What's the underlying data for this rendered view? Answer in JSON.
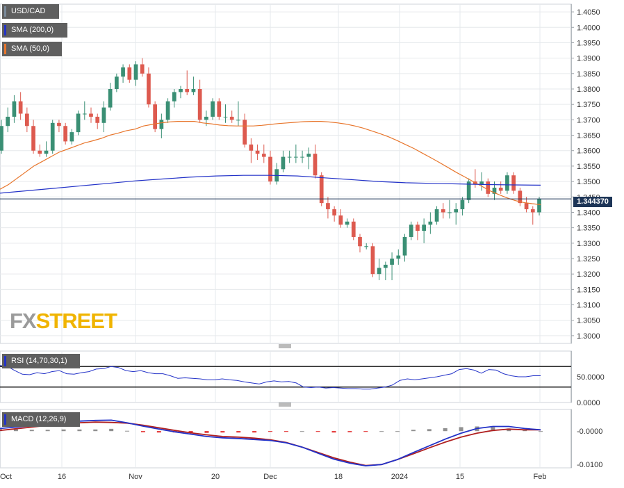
{
  "symbol": "USD/CAD",
  "indicators": {
    "sma200": {
      "label": "SMA (200,0)",
      "color": "#2332c8"
    },
    "sma50": {
      "label": "SMA (50,0)",
      "color": "#e8762c"
    },
    "rsi": {
      "label": "RSI (14,70,30,1)",
      "color": "#2332c8"
    },
    "macd": {
      "label": "MACD (12,26,9)"
    }
  },
  "colors": {
    "up": "#3a8f74",
    "down": "#dd5a4f",
    "macd_line": "#2332c8",
    "signal_line": "#b02020",
    "hist_pos": "#909090",
    "hist_neg": "#e02020"
  },
  "current_price": "1.344370",
  "watermark": {
    "part1": "FX",
    "part2": "STREET"
  },
  "chart_data": [
    {
      "type": "candlestick",
      "title": "USD/CAD",
      "x_labels": [
        "Oct",
        "16",
        "Nov",
        "20",
        "Dec",
        "18",
        "2024",
        "15",
        "Feb"
      ],
      "y_ticks": [
        "1.4050",
        "1.4000",
        "1.3950",
        "1.3900",
        "1.3850",
        "1.3800",
        "1.3750",
        "1.3700",
        "1.3650",
        "1.3600",
        "1.3550",
        "1.3500",
        "1.3450",
        "1.3400",
        "1.3350",
        "1.3300",
        "1.3250",
        "1.3200",
        "1.3150",
        "1.3100",
        "1.3050",
        "1.3000"
      ],
      "ylim": [
        1.2975,
        1.4075
      ],
      "last_price": 1.34437,
      "ohlc": [
        [
          1.36,
          1.37,
          1.359,
          1.368
        ],
        [
          1.368,
          1.374,
          1.366,
          1.371
        ],
        [
          1.371,
          1.378,
          1.369,
          1.376
        ],
        [
          1.376,
          1.379,
          1.37,
          1.372
        ],
        [
          1.372,
          1.374,
          1.366,
          1.368
        ],
        [
          1.368,
          1.37,
          1.359,
          1.36
        ],
        [
          1.36,
          1.362,
          1.358,
          1.359
        ],
        [
          1.359,
          1.363,
          1.358,
          1.36
        ],
        [
          1.36,
          1.37,
          1.359,
          1.369
        ],
        [
          1.369,
          1.37,
          1.366,
          1.368
        ],
        [
          1.368,
          1.369,
          1.362,
          1.363
        ],
        [
          1.363,
          1.367,
          1.362,
          1.366
        ],
        [
          1.366,
          1.373,
          1.365,
          1.372
        ],
        [
          1.372,
          1.376,
          1.37,
          1.372
        ],
        [
          1.372,
          1.374,
          1.369,
          1.371
        ],
        [
          1.371,
          1.372,
          1.367,
          1.369
        ],
        [
          1.369,
          1.376,
          1.366,
          1.374
        ],
        [
          1.374,
          1.382,
          1.373,
          1.38
        ],
        [
          1.38,
          1.385,
          1.379,
          1.384
        ],
        [
          1.384,
          1.388,
          1.382,
          1.387
        ],
        [
          1.387,
          1.388,
          1.382,
          1.383
        ],
        [
          1.383,
          1.389,
          1.381,
          1.388
        ],
        [
          1.388,
          1.39,
          1.384,
          1.385
        ],
        [
          1.385,
          1.387,
          1.374,
          1.375
        ],
        [
          1.375,
          1.376,
          1.366,
          1.367
        ],
        [
          1.367,
          1.372,
          1.364,
          1.37
        ],
        [
          1.37,
          1.377,
          1.369,
          1.376
        ],
        [
          1.376,
          1.38,
          1.374,
          1.379
        ],
        [
          1.379,
          1.381,
          1.377,
          1.38
        ],
        [
          1.38,
          1.386,
          1.378,
          1.379
        ],
        [
          1.379,
          1.384,
          1.378,
          1.38
        ],
        [
          1.38,
          1.383,
          1.369,
          1.37
        ],
        [
          1.37,
          1.373,
          1.368,
          1.371
        ],
        [
          1.371,
          1.377,
          1.37,
          1.376
        ],
        [
          1.376,
          1.377,
          1.37,
          1.371
        ],
        [
          1.371,
          1.375,
          1.369,
          1.371
        ],
        [
          1.371,
          1.373,
          1.369,
          1.37
        ],
        [
          1.37,
          1.376,
          1.368,
          1.37
        ],
        [
          1.37,
          1.372,
          1.361,
          1.362
        ],
        [
          1.362,
          1.364,
          1.356,
          1.36
        ],
        [
          1.36,
          1.362,
          1.357,
          1.359
        ],
        [
          1.359,
          1.362,
          1.356,
          1.358
        ],
        [
          1.358,
          1.36,
          1.349,
          1.35
        ],
        [
          1.35,
          1.356,
          1.349,
          1.354
        ],
        [
          1.354,
          1.36,
          1.353,
          1.358
        ],
        [
          1.358,
          1.36,
          1.356,
          1.358
        ],
        [
          1.358,
          1.362,
          1.356,
          1.358
        ],
        [
          1.358,
          1.36,
          1.356,
          1.358
        ],
        [
          1.358,
          1.361,
          1.354,
          1.359
        ],
        [
          1.359,
          1.362,
          1.351,
          1.352
        ],
        [
          1.352,
          1.353,
          1.342,
          1.343
        ],
        [
          1.343,
          1.345,
          1.338,
          1.341
        ],
        [
          1.341,
          1.342,
          1.337,
          1.339
        ],
        [
          1.339,
          1.341,
          1.335,
          1.336
        ],
        [
          1.336,
          1.338,
          1.335,
          1.337
        ],
        [
          1.337,
          1.338,
          1.331,
          1.332
        ],
        [
          1.332,
          1.333,
          1.327,
          1.329
        ],
        [
          1.329,
          1.33,
          1.328,
          1.329
        ],
        [
          1.329,
          1.33,
          1.319,
          1.32
        ],
        [
          1.32,
          1.325,
          1.318,
          1.322
        ],
        [
          1.322,
          1.324,
          1.318,
          1.323
        ],
        [
          1.323,
          1.327,
          1.318,
          1.325
        ],
        [
          1.325,
          1.328,
          1.323,
          1.326
        ],
        [
          1.326,
          1.333,
          1.324,
          1.332
        ],
        [
          1.332,
          1.337,
          1.331,
          1.336
        ],
        [
          1.336,
          1.337,
          1.331,
          1.334
        ],
        [
          1.334,
          1.338,
          1.33,
          1.336
        ],
        [
          1.336,
          1.34,
          1.333,
          1.337
        ],
        [
          1.337,
          1.342,
          1.336,
          1.341
        ],
        [
          1.341,
          1.343,
          1.338,
          1.34
        ],
        [
          1.34,
          1.344,
          1.338,
          1.34
        ],
        [
          1.34,
          1.343,
          1.336,
          1.341
        ],
        [
          1.341,
          1.345,
          1.339,
          1.344
        ],
        [
          1.344,
          1.351,
          1.343,
          1.35
        ],
        [
          1.35,
          1.354,
          1.348,
          1.349
        ],
        [
          1.349,
          1.353,
          1.347,
          1.35
        ],
        [
          1.35,
          1.351,
          1.345,
          1.346
        ],
        [
          1.346,
          1.35,
          1.344,
          1.348
        ],
        [
          1.348,
          1.35,
          1.346,
          1.347
        ],
        [
          1.347,
          1.353,
          1.346,
          1.352
        ],
        [
          1.352,
          1.353,
          1.346,
          1.347
        ],
        [
          1.347,
          1.348,
          1.342,
          1.343
        ],
        [
          1.343,
          1.345,
          1.34,
          1.341
        ],
        [
          1.341,
          1.342,
          1.336,
          1.34
        ],
        [
          1.34,
          1.345,
          1.339,
          1.3444
        ]
      ],
      "sma50": [
        1.3475,
        1.349,
        1.351,
        1.353,
        1.355,
        1.3565,
        1.358,
        1.3595,
        1.3605,
        1.3615,
        1.3625,
        1.3632,
        1.364,
        1.365,
        1.3657,
        1.3665,
        1.367,
        1.368,
        1.3685,
        1.369,
        1.3693,
        1.3695,
        1.3695,
        1.3695,
        1.369,
        1.3687,
        1.3683,
        1.3681,
        1.368,
        1.368,
        1.368,
        1.3682,
        1.3685,
        1.3688,
        1.369,
        1.3692,
        1.3694,
        1.3695,
        1.3695,
        1.3693,
        1.369,
        1.3686,
        1.368,
        1.3673,
        1.3664,
        1.3655,
        1.3645,
        1.3633,
        1.362,
        1.3607,
        1.3592,
        1.3577,
        1.3562,
        1.3546,
        1.353,
        1.3515,
        1.35,
        1.3485,
        1.347,
        1.3458,
        1.3447,
        1.3438,
        1.3432,
        1.3428,
        1.3425
      ],
      "sma200": [
        1.3462,
        1.347,
        1.3478,
        1.3486,
        1.3494,
        1.3502,
        1.3508,
        1.3514,
        1.3518,
        1.352,
        1.352,
        1.3518,
        1.3512,
        1.3506,
        1.35,
        1.3496,
        1.3494,
        1.3492,
        1.349,
        1.3489,
        1.3488
      ],
      "pane": "price"
    },
    {
      "type": "line",
      "title": "RSI (14,70,30,1)",
      "y_ticks": [
        "50.0000",
        "0.0000"
      ],
      "ylim": [
        0,
        100
      ],
      "levels": [
        70,
        30
      ],
      "values": [
        72,
        70,
        62,
        55,
        54,
        58,
        56,
        60,
        62,
        56,
        55,
        58,
        60,
        65,
        66,
        70,
        68,
        62,
        60,
        62,
        58,
        56,
        56,
        52,
        47,
        48,
        47,
        46,
        44,
        44,
        46,
        44,
        43,
        40,
        38,
        36,
        40,
        42,
        40,
        41,
        38,
        30,
        29,
        30,
        28,
        29,
        28,
        27,
        27,
        26,
        26,
        28,
        30,
        34,
        43,
        46,
        44,
        46,
        48,
        50,
        53,
        56,
        64,
        66,
        63,
        57,
        64,
        63,
        56,
        52,
        50,
        50,
        52,
        52
      ]
    },
    {
      "type": "line",
      "title": "MACD (12,26,9)",
      "y_ticks": [
        "-0.0000",
        "-0.0100"
      ],
      "ylim": [
        -0.011,
        0.0065
      ],
      "macd": [
        0.0008,
        0.0012,
        0.0016,
        0.0021,
        0.0026,
        0.003,
        0.0032,
        0.0033,
        0.0025,
        0.0015,
        0.0006,
        -0.0002,
        -0.0009,
        -0.0016,
        -0.002,
        -0.0022,
        -0.0025,
        -0.0028,
        -0.0035,
        -0.0048,
        -0.0066,
        -0.0084,
        -0.0096,
        -0.0104,
        -0.01,
        -0.0085,
        -0.0064,
        -0.0044,
        -0.0024,
        -0.0006,
        0.0008,
        0.0014,
        0.0014,
        0.0008,
        0.0004
      ],
      "signal": [
        0.0002,
        0.0007,
        0.0012,
        0.0017,
        0.0021,
        0.0025,
        0.0027,
        0.0026,
        0.0024,
        0.0018,
        0.001,
        0.0002,
        -0.0005,
        -0.0011,
        -0.0016,
        -0.0018,
        -0.0021,
        -0.0026,
        -0.0034,
        -0.0048,
        -0.0064,
        -0.008,
        -0.0093,
        -0.0103,
        -0.01,
        -0.0085,
        -0.0068,
        -0.005,
        -0.0033,
        -0.0018,
        -0.0006,
        0.0002,
        0.0006,
        0.0004,
        0.0004
      ],
      "histogram": [
        0.0006,
        0.0006,
        0.0004,
        0.0004,
        0.0005,
        0.0005,
        0.0005,
        0.0007,
        0.0001,
        -0.0003,
        -0.0004,
        -0.0004,
        -0.0004,
        -0.0005,
        -0.0004,
        -0.0004,
        -0.0004,
        -0.0002,
        -0.0001,
        0.0,
        -0.0002,
        -0.0004,
        -0.0003,
        -0.0001,
        0.0,
        0.0,
        0.0004,
        0.0006,
        0.0009,
        0.0012,
        0.0014,
        0.0012,
        0.0008,
        0.0004,
        0.0
      ]
    }
  ]
}
